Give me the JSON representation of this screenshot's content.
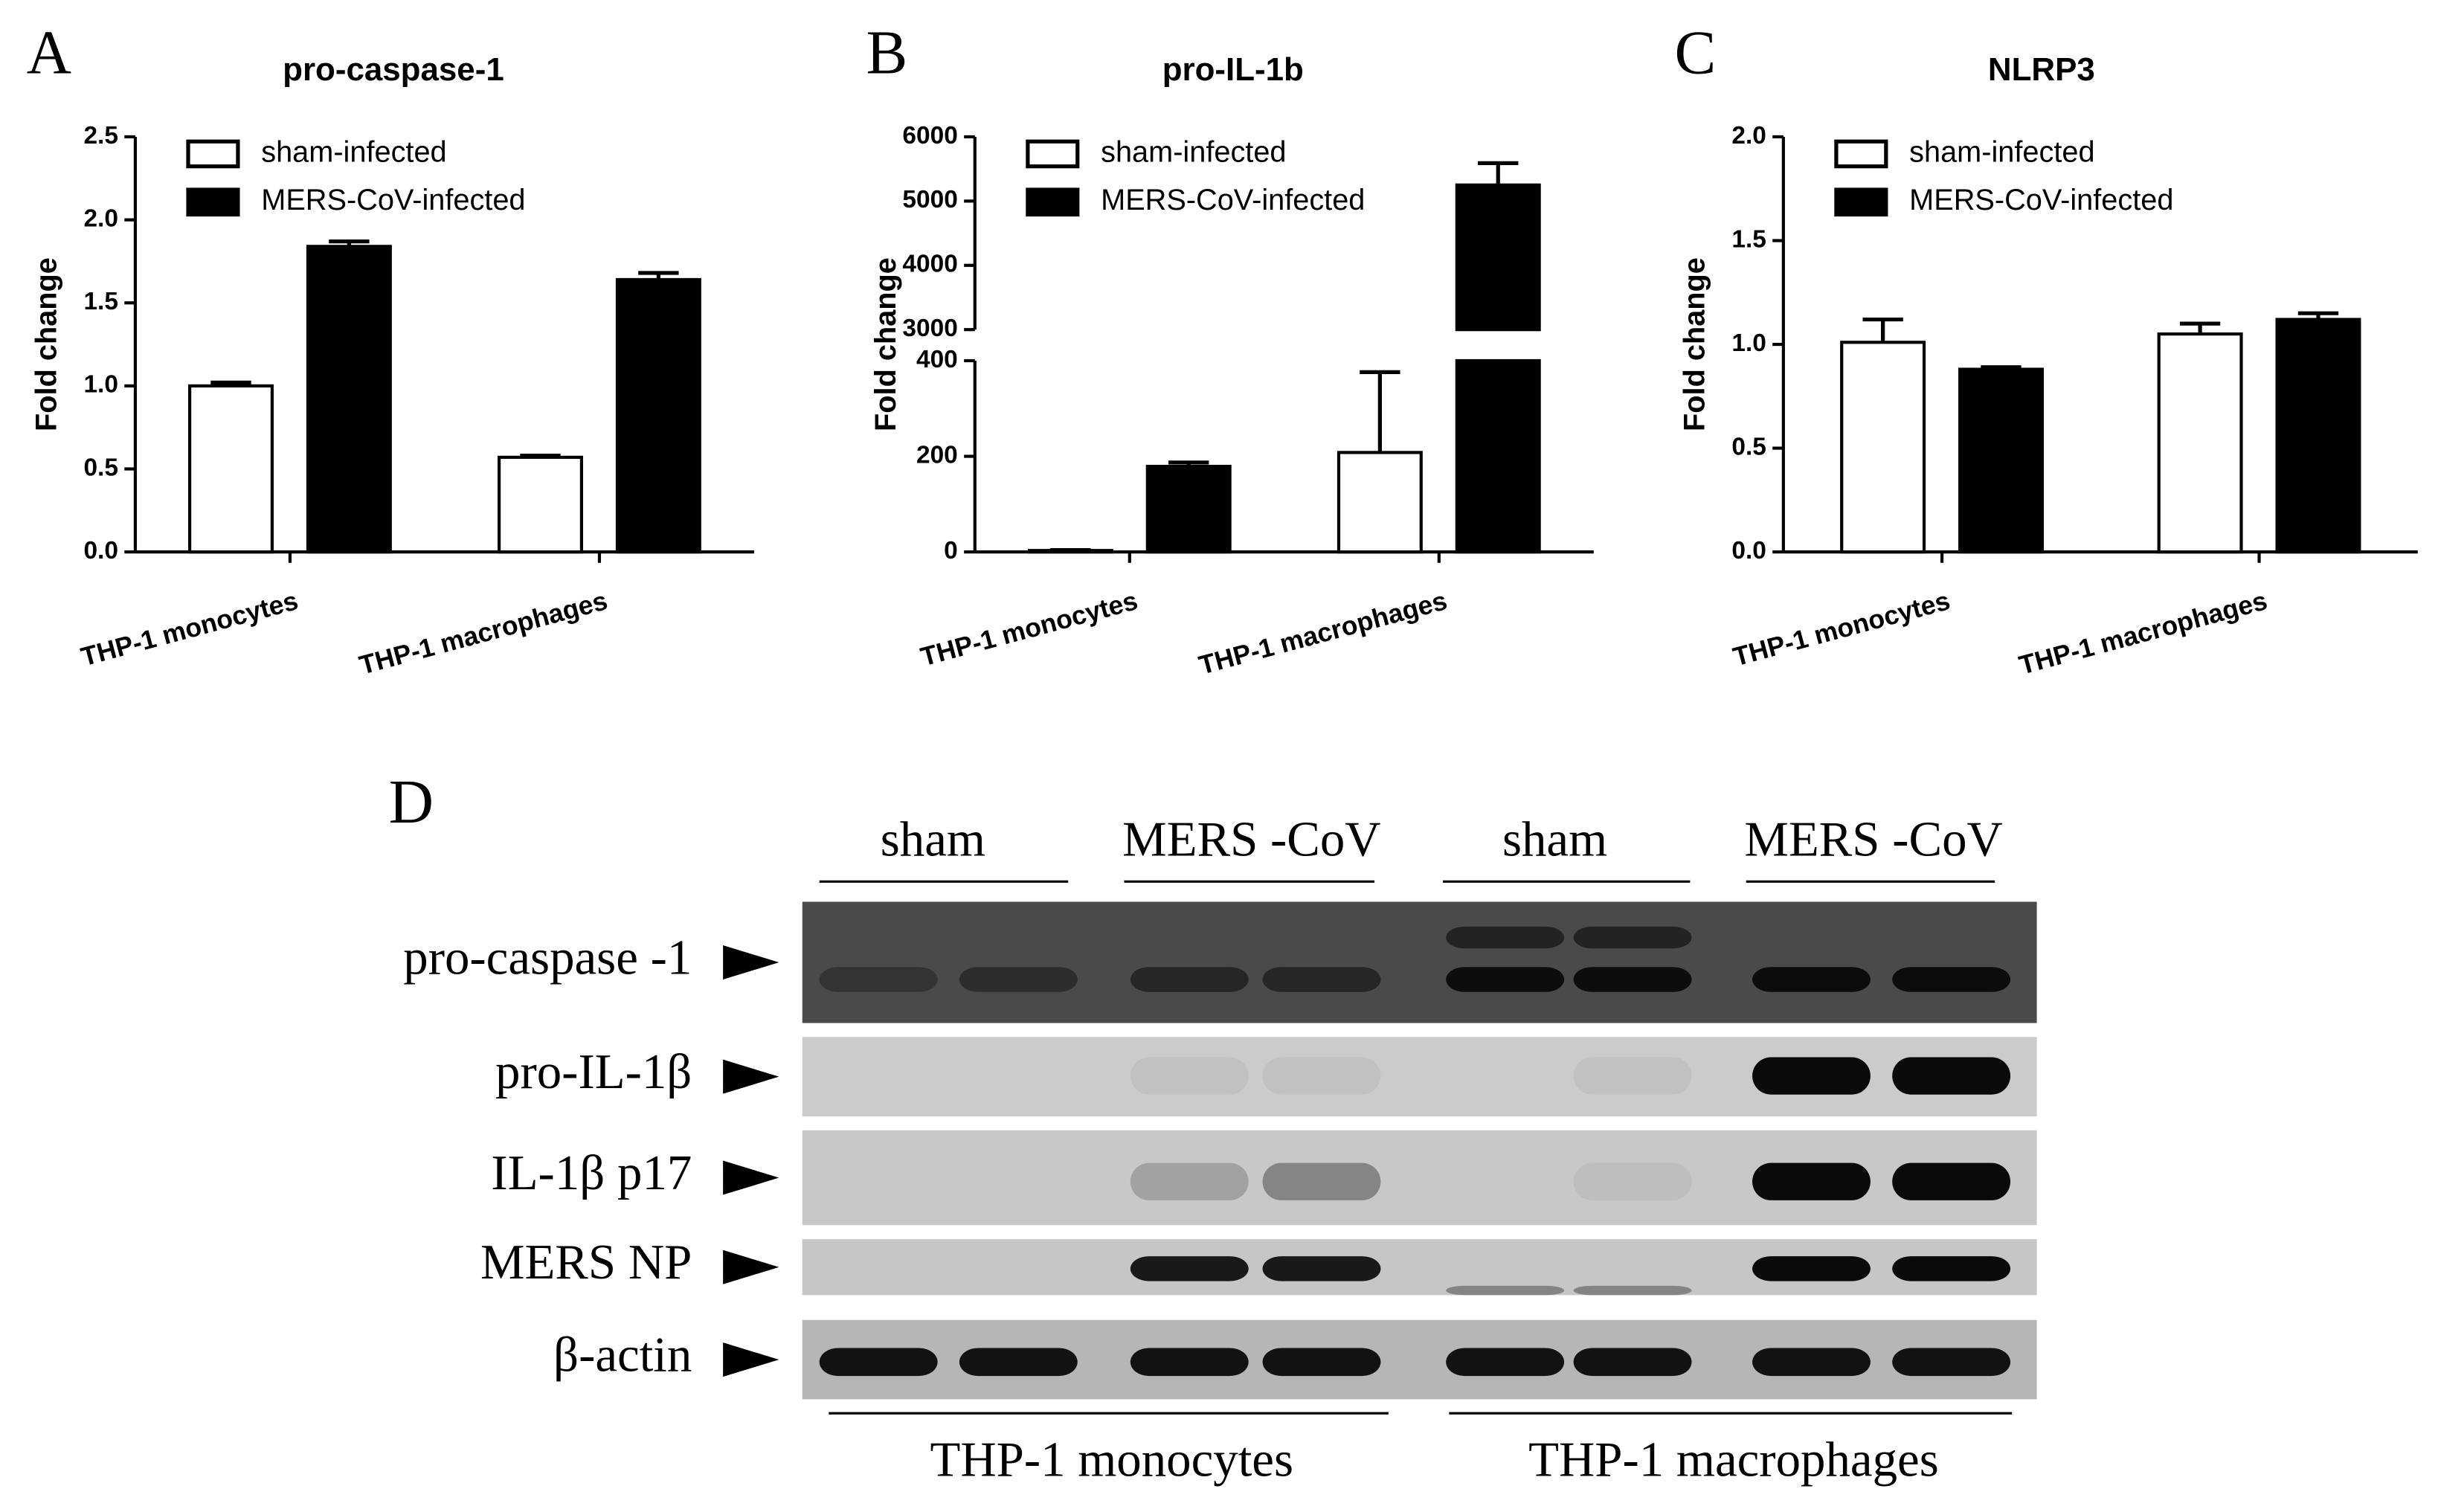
{
  "chart_data": [
    {
      "type": "bar",
      "panel": "A",
      "title": "pro-caspase-1",
      "ylabel": "Fold change",
      "categories": [
        "THP-1 monocytes",
        "THP-1 macrophages"
      ],
      "series": [
        {
          "name": "sham-infected",
          "color": "#ffffff",
          "values": [
            1.0,
            0.57
          ],
          "errors": [
            0.02,
            0.01
          ]
        },
        {
          "name": "MERS-CoV-infected",
          "color": "#000000",
          "values": [
            1.84,
            1.64
          ],
          "errors": [
            0.03,
            0.04
          ]
        }
      ],
      "ylim": [
        0,
        2.5
      ],
      "yticks": [
        {
          "value": 0,
          "label": "0.0"
        },
        0.5,
        {
          "value": 1,
          "label": "1.0"
        },
        1.5,
        {
          "value": 2,
          "label": "2.0"
        },
        2.5
      ]
    },
    {
      "type": "bar",
      "panel": "B",
      "title": "pro-IL-1b",
      "ylabel": "Fold change",
      "categories": [
        "THP-1 monocytes",
        "THP-1 macrophages"
      ],
      "series": [
        {
          "name": "sham-infected",
          "color": "#ffffff",
          "values": [
            3,
            208
          ],
          "errors": [
            1,
            168
          ]
        },
        {
          "name": "MERS-CoV-infected",
          "color": "#000000",
          "values": [
            179,
            5250
          ],
          "errors": [
            8,
            340
          ]
        }
      ],
      "ylim": [
        0,
        6000
      ],
      "ybreak": [
        400,
        3000
      ],
      "yticks": [
        0,
        200,
        400,
        3000,
        4000,
        5000,
        6000
      ]
    },
    {
      "type": "bar",
      "panel": "C",
      "title": "NLRP3",
      "ylabel": "Fold change",
      "categories": [
        "THP-1 monocytes",
        "THP-1 macrophages"
      ],
      "series": [
        {
          "name": "sham-infected",
          "color": "#ffffff",
          "values": [
            1.01,
            1.05
          ],
          "errors": [
            0.11,
            0.05
          ]
        },
        {
          "name": "MERS-CoV-infected",
          "color": "#000000",
          "values": [
            0.88,
            1.12
          ],
          "errors": [
            0.01,
            0.03
          ]
        }
      ],
      "ylim": [
        0,
        2
      ],
      "yticks": [
        {
          "value": 0,
          "label": "0.0"
        },
        0.5,
        {
          "value": 1,
          "label": "1.0"
        },
        1.5,
        {
          "value": 2,
          "label": "2.0"
        }
      ]
    }
  ],
  "blot": {
    "panel": "D",
    "conditions": [
      "sham",
      "MERS -CoV",
      "sham",
      "MERS -CoV"
    ],
    "proteins": [
      "pro-caspase -1",
      "pro-IL-1β",
      "IL-1β p17",
      "MERS  NP",
      "β-actin"
    ],
    "cell_types": [
      "THP-1 monocytes",
      "THP-1 macrophages"
    ]
  }
}
